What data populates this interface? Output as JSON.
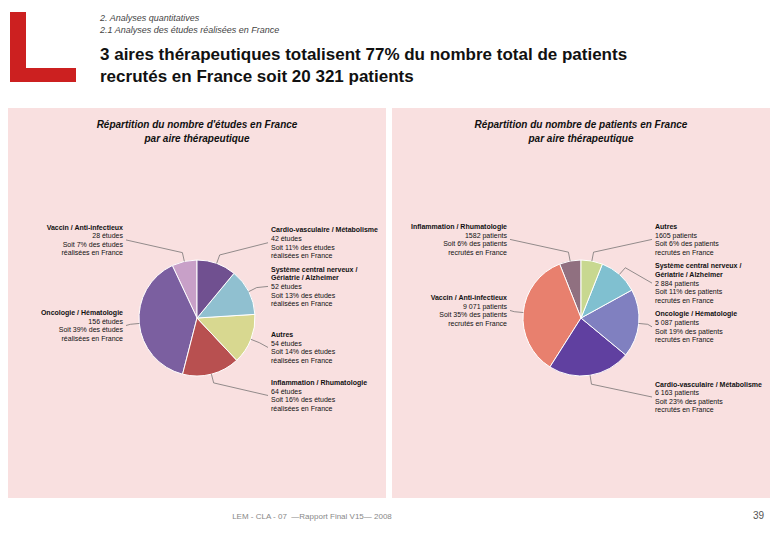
{
  "title": "3 aires thérapeutiques totalisent 77% du nombre total de patients\nrecrutés en France soit 20 321 patients",
  "subtitle": [
    "2. Analyses quantitatives",
    "2.1 Analyses des études réalisées en France"
  ],
  "annotations": [
    "LEM - CLA - 07  —Rapport Final V15— 2008",
    "39"
  ],
  "chart_data": [
    {
      "type": "pie",
      "title": "Répartition du nombre d'études en France\npar aire thérapeutique",
      "categories": [
        "Vaccin / Anti-infectieux",
        "Oncologie / Hématologie",
        "Inflammation / Rhumatologie",
        "Autres",
        "Système central nerveux /\nGériatrie / Alzheimer",
        "Cardio-vasculaire / Métabolisme"
      ],
      "values": [
        7,
        39,
        16,
        14,
        13,
        11
      ],
      "value_labels": [
        "28 études\nSoit 7% des études\nréalisées en France",
        "156 études\nSoit 39% des études\nréalisées en France",
        "64 études\nSoit 16% des études\nréalisées en France",
        "54 études\nSoit 14% des études\nréalisées en France",
        "52 études\nSoit 13% des études\nréalisées en France",
        "42 études\nSoit 11% des études\nréalisées en France"
      ],
      "colors": [
        "#c8a0c8",
        "#7b5fa0",
        "#b85050",
        "#d8d890",
        "#90c0d0",
        "#705090"
      ],
      "data_labels": true
    },
    {
      "type": "pie",
      "title": "Répartition du nombre de patients en France\npar aire thérapeutique",
      "categories": [
        "Inflammation / Rhumatologie",
        "Vaccin / Anti-infectieux",
        "Cardio-vasculaire / Métabolisme",
        "Oncologie / Hématologie",
        "Système central nerveux /\nGériatrie / Alzheimer",
        "Autres"
      ],
      "values": [
        6,
        35,
        23,
        19,
        11,
        6
      ],
      "value_labels": [
        "1582 patients\nSoit 6% des patients\nrecrutés en France",
        "9 071 patients\nSoit 35% des patients\nrecrutés en France",
        "6 163 patients\nSoit 23% des patients\nrecrutés en France",
        "5 087 patients\nSoit 19% des patients\nrecrutés en France",
        "2 884 patients\nSoit 11% des patients\nrecrutés en France",
        "1605 patients\nSoit 6% des patients\nrecrutés en France"
      ],
      "colors": [
        "#907080",
        "#e8806e",
        "#6040a0",
        "#8080c0",
        "#80c0d0",
        "#c8d890"
      ],
      "data_labels": true
    }
  ]
}
